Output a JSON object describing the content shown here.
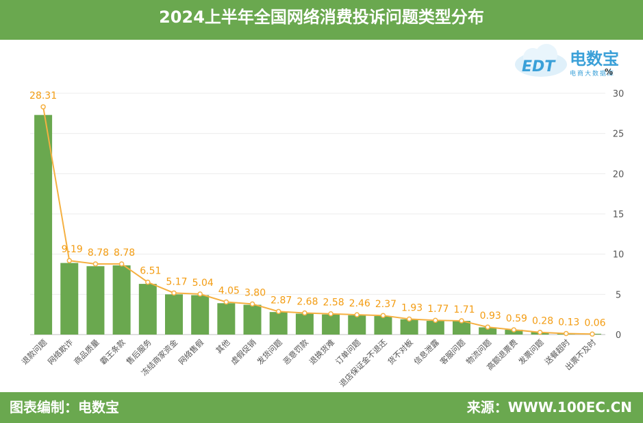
{
  "header": {
    "title": "2024上半年全国网络消费投诉问题类型分布"
  },
  "footer": {
    "compiler": "图表编制：电数宝",
    "source": "来源：WWW.100EC.CN"
  },
  "logo": {
    "brand": "电数宝",
    "tagline": "电商大数据库",
    "mark": "EDT"
  },
  "colors": {
    "bar": "#6aa84f",
    "line": "#f5b041",
    "label": "#f39c12",
    "header": "#6aa84f"
  },
  "chart_data": {
    "type": "bar",
    "unit": "%",
    "categories": [
      "退款问题",
      "网络欺诈",
      "商品质量",
      "霸王条款",
      "售后服务",
      "冻结商家资金",
      "网络售假",
      "其他",
      "虚假促销",
      "发货问题",
      "恶意罚款",
      "退换货难",
      "订单问题",
      "退店保证金不退还",
      "货不对板",
      "信息泄露",
      "客服问题",
      "物流问题",
      "高额退票费",
      "发票问题",
      "送餐超时",
      "出票不及时"
    ],
    "series": [
      {
        "type": "bar",
        "values": [
          27.3,
          8.9,
          8.5,
          8.6,
          6.3,
          5.0,
          4.9,
          3.9,
          3.7,
          2.8,
          2.6,
          2.5,
          2.4,
          2.3,
          1.9,
          1.7,
          1.7,
          0.9,
          0.6,
          0.3,
          0.1,
          0.1
        ]
      },
      {
        "type": "line",
        "values": [
          28.31,
          9.19,
          8.78,
          8.78,
          6.51,
          5.17,
          5.04,
          4.05,
          3.8,
          2.87,
          2.68,
          2.58,
          2.46,
          2.37,
          1.93,
          1.77,
          1.71,
          0.93,
          0.59,
          0.28,
          0.13,
          0.06
        ],
        "labels": [
          "28.31",
          "9.19",
          "8.78",
          "8.78",
          "6.51",
          "5.17",
          "5.04",
          "4.05",
          "3.80",
          "2.87",
          "2.68",
          "2.58",
          "2.46",
          "2.37",
          "1.93",
          "1.77",
          "1.71",
          "0.93",
          "0.59",
          "0.28",
          "0.13",
          "0.06"
        ]
      }
    ],
    "ylim": [
      0,
      30
    ],
    "yticks": [
      "0",
      "5",
      "10",
      "15",
      "20",
      "25",
      "30"
    ],
    "yaxis_position": "right",
    "grid": true
  }
}
